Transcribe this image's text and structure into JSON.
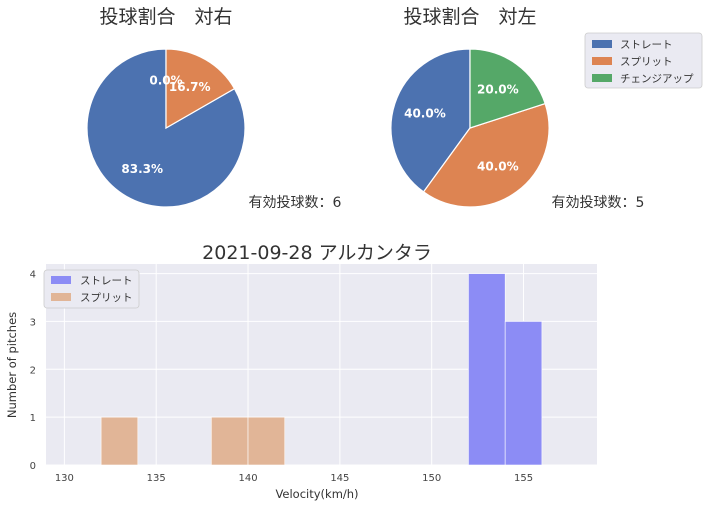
{
  "colors": {
    "straight": "#4c72b0",
    "split": "#dd8452",
    "changeup": "#55a868",
    "hist_straight": "#8c8cf5",
    "hist_split": "#e1b597",
    "axes_bg": "#eaeaf2",
    "grid": "#ffffff"
  },
  "legend_top": {
    "items": [
      {
        "label": "ストレート",
        "color": "#4c72b0"
      },
      {
        "label": "スプリット",
        "color": "#dd8452"
      },
      {
        "label": "チェンジアップ",
        "color": "#55a868"
      }
    ]
  },
  "chart_data": [
    {
      "type": "pie",
      "title": "投球割合　対右",
      "labels": [
        "ストレート",
        "スプリット",
        "チェンジアップ"
      ],
      "values": [
        83.3,
        16.7,
        0.0
      ],
      "value_labels": [
        "83.3%",
        "16.7%",
        "0.0%"
      ],
      "footer": "有効投球数：6"
    },
    {
      "type": "pie",
      "title": "投球割合　対左",
      "labels": [
        "ストレート",
        "スプリット",
        "チェンジアップ"
      ],
      "values": [
        40.0,
        40.0,
        20.0
      ],
      "value_labels": [
        "40.0%",
        "40.0%",
        "20.0%"
      ],
      "footer": "有効投球数：5"
    },
    {
      "type": "bar",
      "title": "2021-09-28 アルカンタラ",
      "xlabel": "Velocity(km/h)",
      "ylabel": "Number of pitches",
      "xlim": [
        129,
        159
      ],
      "ylim": [
        0,
        4.2
      ],
      "xticks": [
        130,
        135,
        140,
        145,
        150,
        155
      ],
      "yticks": [
        0,
        1,
        2,
        3,
        4
      ],
      "grid": true,
      "legend_position": "top-left",
      "series": [
        {
          "name": "ストレート",
          "bins": [
            {
              "x0": 152,
              "x1": 154,
              "count": 4
            },
            {
              "x0": 154,
              "x1": 156,
              "count": 3
            }
          ]
        },
        {
          "name": "スプリット",
          "bins": [
            {
              "x0": 132,
              "x1": 134,
              "count": 1
            },
            {
              "x0": 138,
              "x1": 140,
              "count": 1
            },
            {
              "x0": 140,
              "x1": 142,
              "count": 1
            }
          ]
        }
      ]
    }
  ]
}
